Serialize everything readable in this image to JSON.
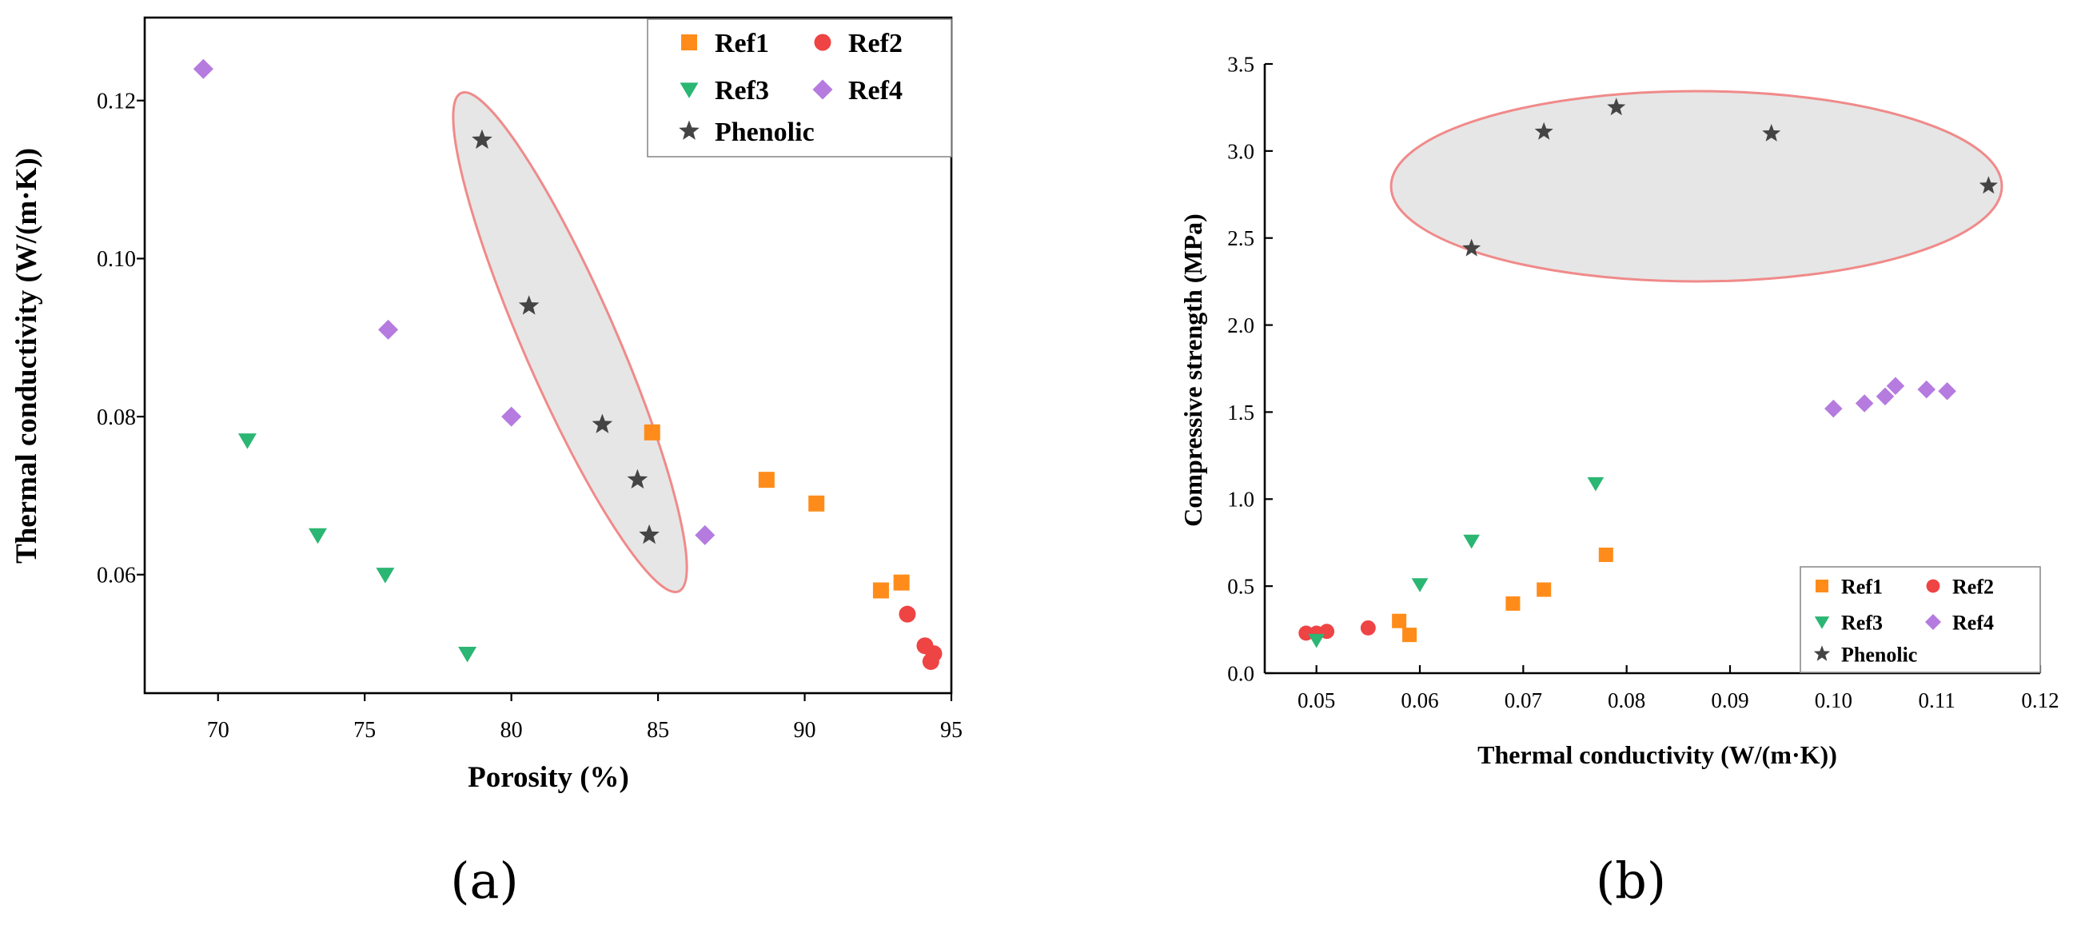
{
  "colors": {
    "Ref1": "#ff8c1a",
    "Ref2": "#ee4444",
    "Ref3": "#2bb673",
    "Ref4": "#b57bdf",
    "Phenolic": "#444444",
    "ellipse_fill": "#e6e6e6",
    "ellipse_stroke": "#f08a8a"
  },
  "chart_data": [
    {
      "type": "scatter",
      "panel_label": "(a)",
      "xlabel": "Porosity (%)",
      "ylabel": "Thermal conductivity (W/(m·K))",
      "xlim": [
        67.5,
        95
      ],
      "ylim": [
        0.045,
        0.1305
      ],
      "xticks": [
        70,
        75,
        80,
        85,
        90,
        95
      ],
      "yticks": [
        0.06,
        0.08,
        0.1,
        0.12
      ],
      "xtick_labels": [
        "70",
        "75",
        "80",
        "85",
        "90",
        "95"
      ],
      "ytick_labels": [
        "0.06",
        "0.08",
        "0.10",
        "0.12"
      ],
      "legend_position": "top-right",
      "series": [
        {
          "name": "Ref1",
          "marker": "square",
          "points": [
            [
              84.8,
              0.078
            ],
            [
              88.7,
              0.072
            ],
            [
              90.4,
              0.069
            ],
            [
              92.6,
              0.058
            ],
            [
              93.3,
              0.059
            ]
          ]
        },
        {
          "name": "Ref2",
          "marker": "circle",
          "points": [
            [
              93.5,
              0.055
            ],
            [
              94.1,
              0.051
            ],
            [
              94.3,
              0.049
            ],
            [
              94.4,
              0.05
            ]
          ]
        },
        {
          "name": "Ref3",
          "marker": "triangle-down",
          "points": [
            [
              71.0,
              0.077
            ],
            [
              73.4,
              0.065
            ],
            [
              75.7,
              0.06
            ],
            [
              78.5,
              0.05
            ]
          ]
        },
        {
          "name": "Ref4",
          "marker": "diamond",
          "points": [
            [
              69.5,
              0.124
            ],
            [
              75.8,
              0.091
            ],
            [
              80.0,
              0.08
            ],
            [
              86.6,
              0.065
            ]
          ]
        },
        {
          "name": "Phenolic",
          "marker": "star",
          "points": [
            [
              79.0,
              0.115
            ],
            [
              80.6,
              0.094
            ],
            [
              83.1,
              0.079
            ],
            [
              84.3,
              0.072
            ],
            [
              84.7,
              0.065
            ]
          ]
        }
      ]
    },
    {
      "type": "scatter",
      "panel_label": "(b)",
      "xlabel": "Thermal conductivity (W/(m·K))",
      "ylabel": "Compressive strength (MPa)",
      "xlim": [
        0.045,
        0.12
      ],
      "ylim": [
        0,
        3.5
      ],
      "xticks": [
        0.05,
        0.06,
        0.07,
        0.08,
        0.09,
        0.1,
        0.11,
        0.12
      ],
      "yticks": [
        0,
        0.5,
        1.0,
        1.5,
        2.0,
        2.5,
        3.0,
        3.5
      ],
      "xtick_labels": [
        "0.05",
        "0.06",
        "0.07",
        "0.08",
        "0.09",
        "0.10",
        "0.11",
        "0.12"
      ],
      "ytick_labels": [
        "0.0",
        "0.5",
        "1.0",
        "1.5",
        "2.0",
        "2.5",
        "3.0",
        "3.5"
      ],
      "legend_position": "bottom-right",
      "series": [
        {
          "name": "Ref1",
          "marker": "square",
          "points": [
            [
              0.058,
              0.3
            ],
            [
              0.059,
              0.22
            ],
            [
              0.069,
              0.4
            ],
            [
              0.072,
              0.48
            ],
            [
              0.078,
              0.68
            ]
          ]
        },
        {
          "name": "Ref2",
          "marker": "circle",
          "points": [
            [
              0.049,
              0.23
            ],
            [
              0.05,
              0.23
            ],
            [
              0.051,
              0.24
            ],
            [
              0.055,
              0.26
            ]
          ]
        },
        {
          "name": "Ref3",
          "marker": "triangle-down",
          "points": [
            [
              0.05,
              0.19
            ],
            [
              0.06,
              0.51
            ],
            [
              0.065,
              0.76
            ],
            [
              0.077,
              1.09
            ]
          ]
        },
        {
          "name": "Ref4",
          "marker": "diamond",
          "points": [
            [
              0.1,
              1.52
            ],
            [
              0.103,
              1.55
            ],
            [
              0.105,
              1.59
            ],
            [
              0.106,
              1.65
            ],
            [
              0.109,
              1.63
            ],
            [
              0.111,
              1.62
            ]
          ]
        },
        {
          "name": "Phenolic",
          "marker": "star",
          "points": [
            [
              0.065,
              2.44
            ],
            [
              0.072,
              3.11
            ],
            [
              0.079,
              3.25
            ],
            [
              0.094,
              3.1
            ],
            [
              0.115,
              2.8
            ]
          ]
        }
      ]
    }
  ]
}
